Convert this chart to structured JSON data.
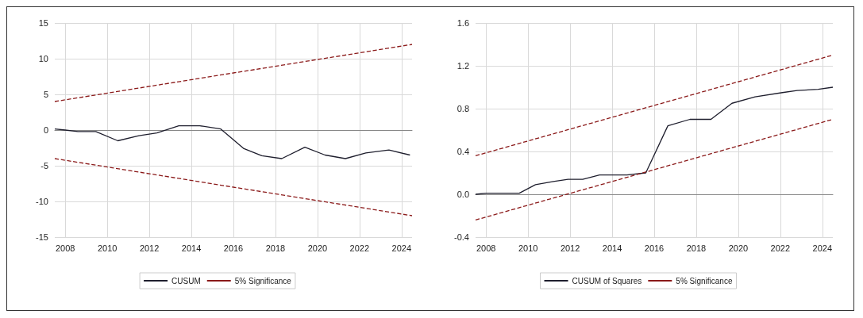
{
  "chart_data": [
    {
      "type": "line",
      "xlim": [
        2007.5,
        2024.5
      ],
      "xticks": [
        2008,
        2010,
        2012,
        2014,
        2016,
        2018,
        2020,
        2022,
        2024
      ],
      "ylim": [
        -15,
        15
      ],
      "yticks": [
        -15,
        -10,
        -5,
        0,
        5,
        10,
        15
      ],
      "grid": true,
      "legend": "bottom",
      "marker": "none",
      "series": [
        {
          "name": "CUSUM",
          "color": "#1f1f2e",
          "line_style": "solid",
          "x": [
            2007.5,
            2008,
            2008.6,
            2009.45,
            2010.5,
            2011.5,
            2012.36,
            2013.4,
            2014.4,
            2015.4,
            2016.5,
            2017.35,
            2018.3,
            2019.4,
            2020.36,
            2021.33,
            2022.3,
            2023.4,
            2024.4
          ],
          "values": [
            0.15,
            0,
            -0.2,
            -0.2,
            -1.5,
            -0.8,
            -0.4,
            0.6,
            0.6,
            0.15,
            -2.6,
            -3.6,
            -4.0,
            -2.4,
            -3.5,
            -4.0,
            -3.2,
            -2.8,
            -3.5
          ]
        },
        {
          "name": "5% Significance",
          "color": "#8b1a1a",
          "line_style": "dashed",
          "x": [
            2007.5,
            2024.5
          ],
          "values": [
            4,
            12
          ]
        },
        {
          "color": "#8b1a1a",
          "line_style": "dashed",
          "x": [
            2007.5,
            2024.5
          ],
          "values": [
            -4,
            -12
          ]
        }
      ]
    },
    {
      "type": "line",
      "xlim": [
        2007.5,
        2024.5
      ],
      "xticks": [
        2008,
        2010,
        2012,
        2014,
        2016,
        2018,
        2020,
        2022,
        2024
      ],
      "ylim": [
        -0.4,
        1.6
      ],
      "yticks": [
        -0.4,
        {
          "value": 0,
          "label": "0.0"
        },
        0.4,
        0.8,
        1.2,
        1.6
      ],
      "grid": true,
      "legend": "bottom",
      "marker": "none",
      "series": [
        {
          "name": "CUSUM of Squares",
          "color": "#1f1f2e",
          "line_style": "solid",
          "x": [
            2007.5,
            2008,
            2009.58,
            2010.35,
            2011.2,
            2011.9,
            2012.6,
            2013.4,
            2014.7,
            2015.6,
            2016.65,
            2017.7,
            2018.7,
            2019.7,
            2020.8,
            2022.1,
            2022.8,
            2023.8,
            2024.5
          ],
          "values": [
            0,
            0.01,
            0.01,
            0.09,
            0.12,
            0.14,
            0.14,
            0.18,
            0.18,
            0.2,
            0.64,
            0.7,
            0.7,
            0.85,
            0.91,
            0.95,
            0.97,
            0.98,
            1.0
          ]
        },
        {
          "name": "5% Significance",
          "color": "#8b1a1a",
          "line_style": "dashed",
          "x": [
            2007.5,
            2024.5
          ],
          "values": [
            0.36,
            1.3
          ]
        },
        {
          "color": "#8b1a1a",
          "line_style": "dashed",
          "x": [
            2007.5,
            2024.5
          ],
          "values": [
            -0.24,
            0.7
          ]
        }
      ]
    }
  ]
}
